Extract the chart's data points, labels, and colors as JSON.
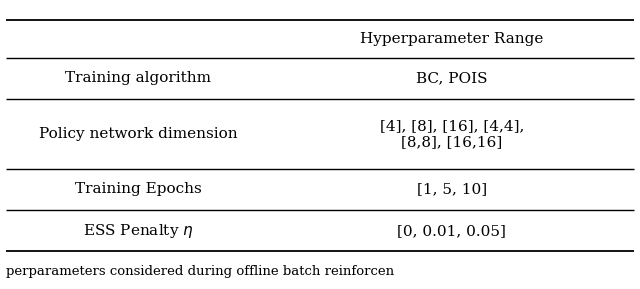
{
  "col_header": [
    "",
    "Hyperparameter Range"
  ],
  "rows": [
    [
      "Training algorithm",
      "BC, POIS"
    ],
    [
      "Policy network dimension",
      "[4], [8], [16], [4,4],\n[8,8], [16,16]"
    ],
    [
      "Training Epochs",
      "[1, 5, 10]"
    ],
    [
      "ESS Penalty $\\eta$",
      "[0, 0.01, 0.05]"
    ]
  ],
  "caption": "perparameters considered during offline batch reinforcen",
  "figsize": [
    6.4,
    2.89
  ],
  "dpi": 100,
  "font_size": 11,
  "caption_font_size": 9.5,
  "col_split": 0.42,
  "background_color": "#ffffff",
  "text_color": "#000000",
  "line_color": "#000000"
}
